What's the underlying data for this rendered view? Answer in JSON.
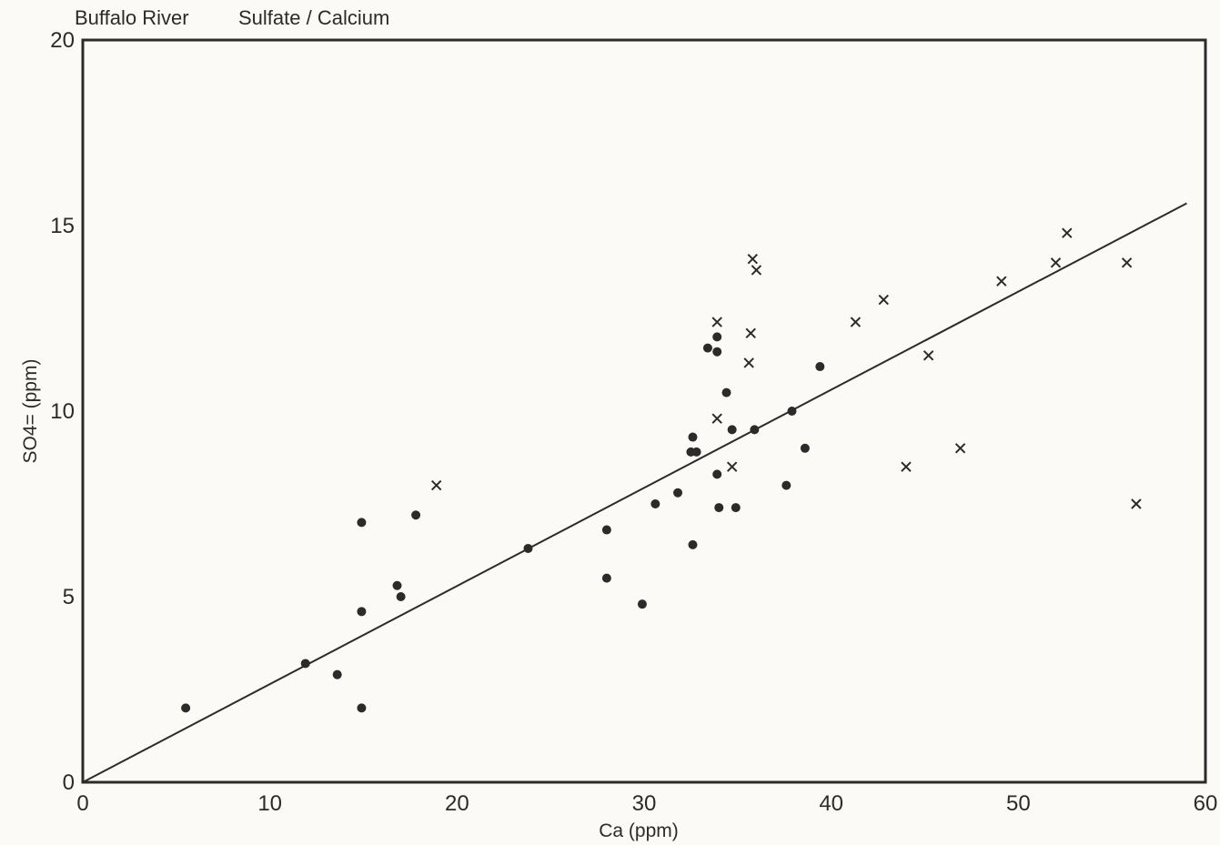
{
  "chart_data": {
    "type": "scatter",
    "title": "Buffalo River",
    "subtitle": "Sulfate / Calcium",
    "xlabel": "Ca (ppm)",
    "ylabel": "SO4= (ppm)",
    "xlim": [
      0,
      60
    ],
    "ylim": [
      0,
      20
    ],
    "xticks": [
      "0",
      "10",
      "20",
      "30",
      "40",
      "50",
      "60"
    ],
    "yticks": [
      "0",
      "5",
      "10",
      "15",
      "20"
    ],
    "grid": false,
    "colors": {
      "ink": "#2b2b2b",
      "background": "#fbfaf7"
    },
    "series": [
      {
        "marker": "dot",
        "points": [
          [
            5.5,
            2.0
          ],
          [
            11.9,
            3.2
          ],
          [
            13.6,
            2.9
          ],
          [
            14.9,
            7.0
          ],
          [
            14.9,
            4.6
          ],
          [
            14.9,
            2.0
          ],
          [
            16.8,
            5.3
          ],
          [
            17.0,
            5.0
          ],
          [
            17.8,
            7.2
          ],
          [
            23.8,
            6.3
          ],
          [
            28.0,
            6.8
          ],
          [
            28.0,
            5.5
          ],
          [
            29.9,
            4.8
          ],
          [
            30.6,
            7.5
          ],
          [
            31.8,
            7.8
          ],
          [
            32.5,
            8.9
          ],
          [
            32.6,
            9.3
          ],
          [
            32.6,
            6.4
          ],
          [
            32.8,
            8.9
          ],
          [
            33.4,
            11.7
          ],
          [
            33.9,
            12.0
          ],
          [
            33.9,
            11.6
          ],
          [
            33.9,
            8.3
          ],
          [
            34.0,
            7.4
          ],
          [
            34.4,
            10.5
          ],
          [
            34.7,
            9.5
          ],
          [
            34.9,
            7.4
          ],
          [
            35.9,
            9.5
          ],
          [
            37.6,
            8.0
          ],
          [
            37.9,
            10.0
          ],
          [
            38.6,
            9.0
          ],
          [
            39.4,
            11.2
          ]
        ]
      },
      {
        "marker": "cross",
        "points": [
          [
            18.9,
            8.0
          ],
          [
            33.9,
            12.4
          ],
          [
            33.9,
            9.8
          ],
          [
            34.7,
            8.5
          ],
          [
            35.6,
            11.3
          ],
          [
            35.7,
            12.1
          ],
          [
            35.8,
            14.1
          ],
          [
            36.0,
            13.8
          ],
          [
            41.3,
            12.4
          ],
          [
            42.8,
            13.0
          ],
          [
            44.0,
            8.5
          ],
          [
            45.2,
            11.5
          ],
          [
            46.9,
            9.0
          ],
          [
            49.1,
            13.5
          ],
          [
            52.0,
            14.0
          ],
          [
            52.6,
            14.8
          ],
          [
            55.8,
            14.0
          ],
          [
            56.3,
            7.5
          ]
        ]
      }
    ],
    "fit_line": {
      "x": [
        0,
        59
      ],
      "y": [
        0,
        15.6
      ]
    }
  }
}
